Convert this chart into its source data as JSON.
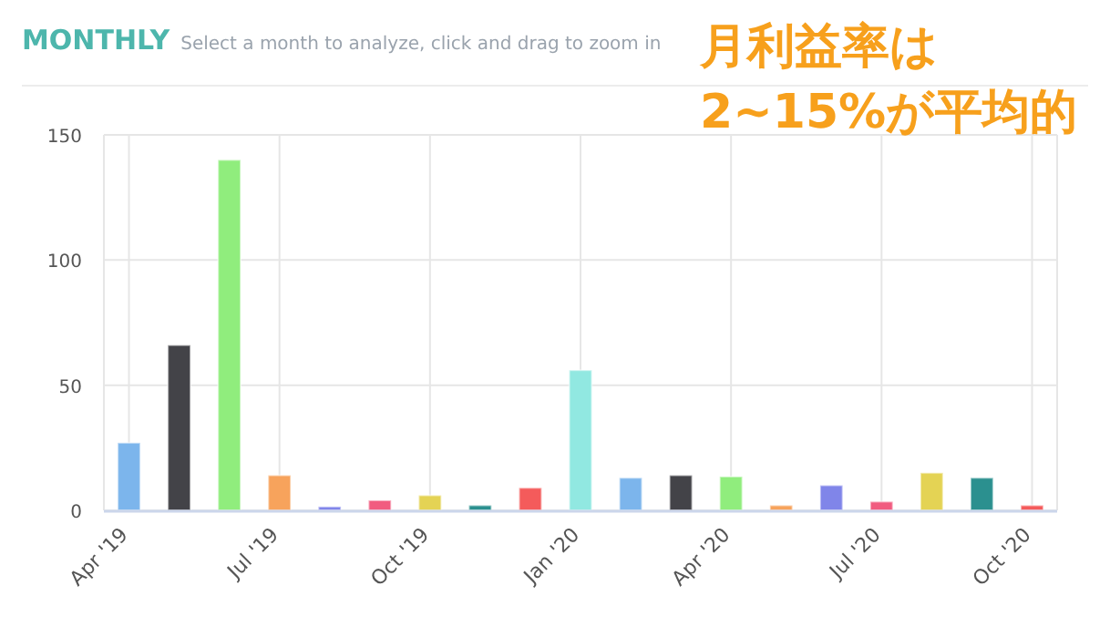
{
  "chart_data": {
    "type": "bar",
    "title": "MONTHLY",
    "subtitle": "Select a month to analyze, click and drag to zoom in",
    "annotations": [
      "月利益率は\n2~15%が平均的"
    ],
    "categories": [
      "Apr '19",
      null,
      null,
      "Jul '19",
      null,
      null,
      "Oct '19",
      null,
      null,
      "Jan '20",
      null,
      null,
      "Apr '20",
      null,
      null,
      "Jul '20",
      null,
      null,
      "Oct '20"
    ],
    "values": [
      27,
      66,
      140,
      14,
      1.5,
      4,
      6,
      2,
      9,
      56,
      13,
      14,
      13.5,
      2,
      10,
      3.5,
      15,
      13,
      2
    ],
    "colors": [
      "#7cb5ec",
      "#434348",
      "#90ed7d",
      "#f7a35c",
      "#8085e9",
      "#f15c80",
      "#e4d354",
      "#2b908f",
      "#f45b5b",
      "#91e8e1",
      "#7cb5ec",
      "#434348",
      "#90ed7d",
      "#f7a35c",
      "#8085e9",
      "#f15c80",
      "#e4d354",
      "#2b908f",
      "#f45b5b"
    ],
    "ylim": [
      0,
      150
    ],
    "yticks": [
      0,
      50,
      100,
      150
    ],
    "grid": true
  }
}
